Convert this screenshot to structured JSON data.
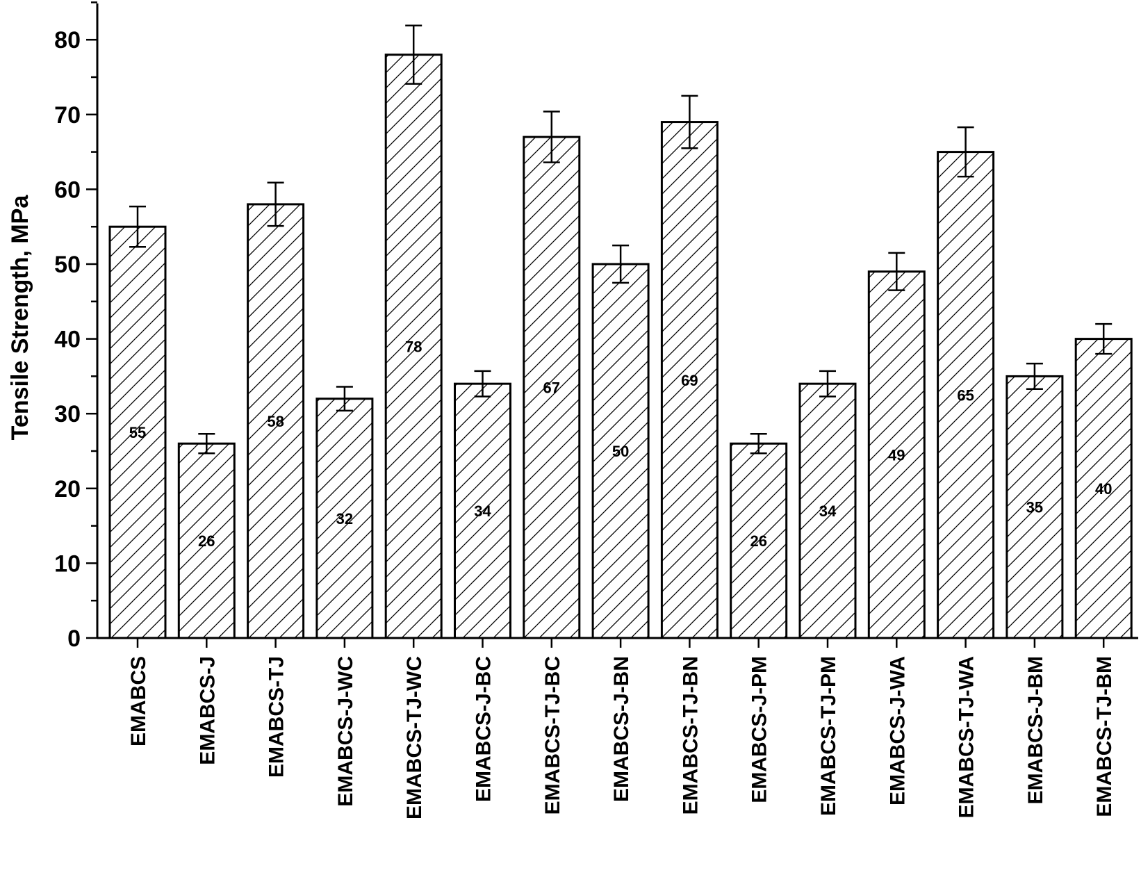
{
  "chart_data": {
    "type": "bar",
    "title": "",
    "xlabel": "",
    "ylabel": "Tensile Strength, MPa",
    "ylim": [
      0,
      85
    ],
    "yticks": [
      0,
      10,
      20,
      30,
      40,
      50,
      60,
      70,
      80
    ],
    "ytick_labels": [
      "0",
      "10",
      "20",
      "30",
      "40",
      "50",
      "60",
      "70",
      "80"
    ],
    "grid": false,
    "legend": "none",
    "bar_fill": "hatched",
    "bar_color": "#000000",
    "categories": [
      "EMABCS",
      "EMABCS-J",
      "EMABCS-TJ",
      "EMABCS-J-WC",
      "EMABCS-TJ-WC",
      "EMABCS-J-BC",
      "EMABCS-TJ-BC",
      "EMABCS-J-BN",
      "EMABCS-TJ-BN",
      "EMABCS-J-PM",
      "EMABCS-TJ-PM",
      "EMABCS-J-WA",
      "EMABCS-TJ-WA",
      "EMABCS-J-BM",
      "EMABCS-TJ-BM"
    ],
    "values": [
      55,
      26,
      58,
      32,
      78,
      34,
      67,
      50,
      69,
      26,
      34,
      49,
      65,
      35,
      40
    ],
    "errors": [
      2.7,
      1.3,
      2.9,
      1.6,
      3.9,
      1.7,
      3.4,
      2.5,
      3.5,
      1.3,
      1.7,
      2.5,
      3.3,
      1.7,
      2.0
    ],
    "data_labels": [
      "55",
      "26",
      "58",
      "32",
      "78",
      "34",
      "67",
      "50",
      "69",
      "26",
      "34",
      "49",
      "65",
      "35",
      "40"
    ]
  }
}
